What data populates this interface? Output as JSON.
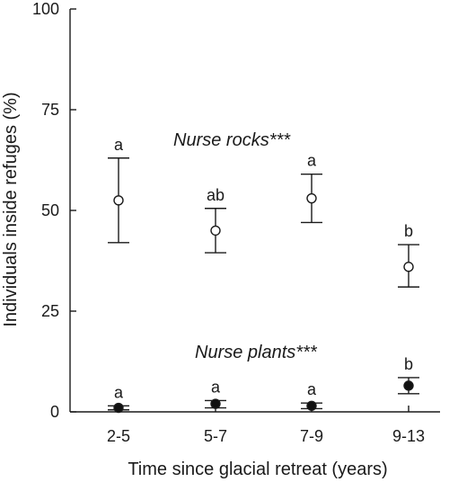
{
  "chart_data": {
    "type": "scatter",
    "title": "",
    "xlabel": "Time since glacial retreat (years)",
    "ylabel": "Individuals inside refuges (%)",
    "categories": [
      "2-5",
      "5-7",
      "7-9",
      "9-13"
    ],
    "ylim": [
      0,
      100
    ],
    "yticks": [
      0,
      25,
      50,
      75,
      100
    ],
    "grid": false,
    "series": [
      {
        "name": "Nurse rocks***",
        "marker": "open-circle",
        "color": "#ffffff",
        "values": [
          52.5,
          45,
          53,
          36
        ],
        "err_low": [
          42,
          39.5,
          47,
          31
        ],
        "err_high": [
          63,
          50.5,
          59,
          41.5
        ],
        "letters": [
          "a",
          "ab",
          "a",
          "b"
        ]
      },
      {
        "name": "Nurse plants***",
        "marker": "filled-circle",
        "color": "#111111",
        "values": [
          1,
          2,
          1.5,
          6.5
        ],
        "err_low": [
          0.5,
          1,
          0.8,
          4.5
        ],
        "err_high": [
          1.5,
          2.8,
          2.2,
          8.5
        ],
        "letters": [
          "a",
          "a",
          "a",
          "b"
        ]
      }
    ]
  }
}
